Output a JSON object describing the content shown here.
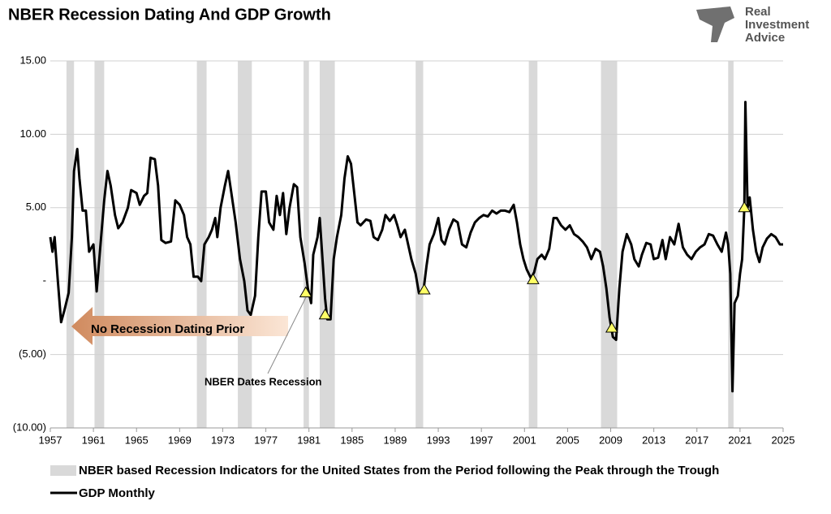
{
  "chart_data": {
    "type": "line",
    "title": "NBER Recession Dating And GDP Growth",
    "logo": [
      "Real",
      "Investment",
      "Advice"
    ],
    "xlim": [
      1957,
      2025
    ],
    "xticks": [
      1957,
      1961,
      1965,
      1969,
      1973,
      1977,
      1981,
      1985,
      1989,
      1993,
      1997,
      2001,
      2005,
      2009,
      2013,
      2017,
      2021,
      2025
    ],
    "ylim": [
      -10,
      15
    ],
    "yticks": [
      {
        "value": 15,
        "label": "15.00"
      },
      {
        "value": 10,
        "label": "10.00"
      },
      {
        "value": 5,
        "label": "5.00"
      },
      {
        "value": 0,
        "label": "-"
      },
      {
        "value": -5,
        "label": "(5.00)"
      },
      {
        "value": -10,
        "label": "(10.00)"
      }
    ],
    "grid": true,
    "recession_name": "NBER based Recession Indicators for the United States from the Period following the Peak through the Trough",
    "recession_color": "#d9d9d9",
    "recessions": [
      [
        1958.5,
        1959.2
      ],
      [
        1961.1,
        1962.0
      ],
      [
        1970.6,
        1971.5
      ],
      [
        1974.4,
        1975.7
      ],
      [
        1980.5,
        1981.0
      ],
      [
        1982.0,
        1983.4
      ],
      [
        1990.9,
        1991.6
      ],
      [
        2001.4,
        2002.2
      ],
      [
        2008.1,
        2009.6
      ],
      [
        2019.9,
        2020.4
      ]
    ],
    "x": [
      1957.0,
      1957.2,
      1957.4,
      1957.7,
      1958.0,
      1958.3,
      1958.7,
      1959.0,
      1959.2,
      1959.5,
      1959.7,
      1960.0,
      1960.3,
      1960.6,
      1961.0,
      1961.3,
      1961.6,
      1962.0,
      1962.3,
      1962.6,
      1963.0,
      1963.3,
      1963.7,
      1964.2,
      1964.5,
      1965.0,
      1965.3,
      1965.7,
      1966.0,
      1966.3,
      1966.7,
      1967.0,
      1967.3,
      1967.7,
      1968.2,
      1968.6,
      1969.0,
      1969.4,
      1969.7,
      1970.0,
      1970.3,
      1970.7,
      1971.0,
      1971.3,
      1971.7,
      1972.0,
      1972.3,
      1972.5,
      1972.8,
      1973.2,
      1973.5,
      1973.8,
      1974.2,
      1974.6,
      1975.0,
      1975.3,
      1975.6,
      1976.0,
      1976.3,
      1976.6,
      1977.0,
      1977.3,
      1977.7,
      1978.0,
      1978.3,
      1978.6,
      1978.9,
      1979.2,
      1979.6,
      1979.9,
      1980.2,
      1980.6,
      1980.9,
      1981.2,
      1981.4,
      1981.8,
      1982.0,
      1982.3,
      1982.5,
      1982.7,
      1983.0,
      1983.3,
      1983.6,
      1984.0,
      1984.3,
      1984.6,
      1984.9,
      1985.2,
      1985.5,
      1985.8,
      1986.3,
      1986.7,
      1987.0,
      1987.4,
      1987.8,
      1988.1,
      1988.5,
      1988.9,
      1989.2,
      1989.5,
      1989.9,
      1990.2,
      1990.5,
      1990.9,
      1991.2,
      1991.6,
      1991.9,
      1992.2,
      1992.6,
      1993.0,
      1993.3,
      1993.6,
      1994.0,
      1994.4,
      1994.8,
      1995.2,
      1995.6,
      1996.0,
      1996.4,
      1996.8,
      1997.2,
      1997.6,
      1998.0,
      1998.4,
      1998.8,
      1999.2,
      1999.6,
      2000.0,
      2000.3,
      2000.6,
      2000.9,
      2001.2,
      2001.6,
      2001.9,
      2002.2,
      2002.6,
      2002.9,
      2003.3,
      2003.7,
      2004.0,
      2004.4,
      2004.8,
      2005.2,
      2005.6,
      2006.0,
      2006.4,
      2006.8,
      2007.2,
      2007.6,
      2008.0,
      2008.3,
      2008.6,
      2008.9,
      2009.2,
      2009.5,
      2009.8,
      2010.1,
      2010.5,
      2010.9,
      2011.2,
      2011.6,
      2011.9,
      2012.3,
      2012.7,
      2013.0,
      2013.4,
      2013.8,
      2014.1,
      2014.5,
      2014.9,
      2015.3,
      2015.7,
      2016.1,
      2016.5,
      2016.9,
      2017.3,
      2017.7,
      2018.1,
      2018.5,
      2018.9,
      2019.3,
      2019.7,
      2019.9,
      2020.1,
      2020.3,
      2020.5,
      2020.8,
      2021.0,
      2021.2,
      2021.4,
      2021.5,
      2021.7,
      2021.9,
      2022.2,
      2022.5,
      2022.8,
      2023.1,
      2023.5,
      2023.9,
      2024.3,
      2024.7,
      2025.0
    ],
    "series": [
      {
        "name": "GDP Monthly",
        "color": "#000000",
        "values": [
          3.0,
          2.0,
          3.0,
          0,
          -2.8,
          -2.0,
          -0.8,
          3.0,
          7.5,
          9.0,
          7.0,
          4.8,
          4.8,
          2.0,
          2.5,
          -0.7,
          2.0,
          5.5,
          7.5,
          6.5,
          4.5,
          3.6,
          4.0,
          5.0,
          6.2,
          6.0,
          5.2,
          5.8,
          6.0,
          8.4,
          8.3,
          6.5,
          2.8,
          2.6,
          2.7,
          5.5,
          5.2,
          4.5,
          3.0,
          2.5,
          0.3,
          0.3,
          0,
          2.5,
          3.0,
          3.5,
          4.3,
          3.0,
          5.0,
          6.5,
          7.5,
          6.0,
          4.0,
          1.5,
          0,
          -2.0,
          -2.3,
          -1.0,
          3.0,
          6.1,
          6.1,
          4.0,
          3.5,
          5.8,
          4.5,
          6.0,
          3.2,
          5.0,
          6.6,
          6.4,
          3.0,
          1.2,
          -0.5,
          -1.5,
          1.8,
          3.0,
          4.3,
          1.0,
          -1.2,
          -2.6,
          -2.6,
          1.5,
          3.0,
          4.5,
          7.0,
          8.5,
          8.0,
          6.0,
          4.0,
          3.8,
          4.2,
          4.1,
          3.0,
          2.8,
          3.5,
          4.5,
          4.1,
          4.5,
          3.8,
          3.0,
          3.5,
          2.5,
          1.5,
          0.5,
          -0.8,
          -0.8,
          1.0,
          2.5,
          3.2,
          4.3,
          2.8,
          2.5,
          3.5,
          4.2,
          4.0,
          2.5,
          2.3,
          3.3,
          4.0,
          4.3,
          4.5,
          4.4,
          4.8,
          4.6,
          4.8,
          4.8,
          4.7,
          5.2,
          4.0,
          2.5,
          1.5,
          0.8,
          0.2,
          0.6,
          1.5,
          1.8,
          1.5,
          2.2,
          4.3,
          4.3,
          3.8,
          3.5,
          3.8,
          3.2,
          3.0,
          2.7,
          2.3,
          1.5,
          2.2,
          2.0,
          1.0,
          -0.5,
          -2.5,
          -3.8,
          -4.0,
          -0.5,
          2.0,
          3.2,
          2.5,
          1.5,
          1.0,
          1.8,
          2.6,
          2.5,
          1.5,
          1.6,
          2.8,
          1.5,
          3.0,
          2.5,
          3.9,
          2.3,
          1.8,
          1.5,
          2.0,
          2.3,
          2.5,
          3.2,
          3.1,
          2.5,
          2.0,
          3.3,
          2.5,
          0.5,
          -7.5,
          -1.5,
          -1.0,
          0.5,
          1.5,
          5.0,
          12.2,
          5.0,
          5.7,
          3.5,
          2.0,
          1.3,
          2.3,
          2.9,
          3.2,
          3.0,
          2.5,
          2.5
        ]
      }
    ],
    "markers": {
      "color": "#ffff66",
      "x": [
        1980.7,
        1982.5,
        1991.7,
        2001.8,
        2009.1,
        2021.4
      ],
      "values": [
        -0.8,
        -2.3,
        -0.6,
        0.1,
        -3.2,
        5.0
      ]
    },
    "annotations": [
      "No Recession Dating Prior",
      "NBER Dates Recession"
    ]
  }
}
